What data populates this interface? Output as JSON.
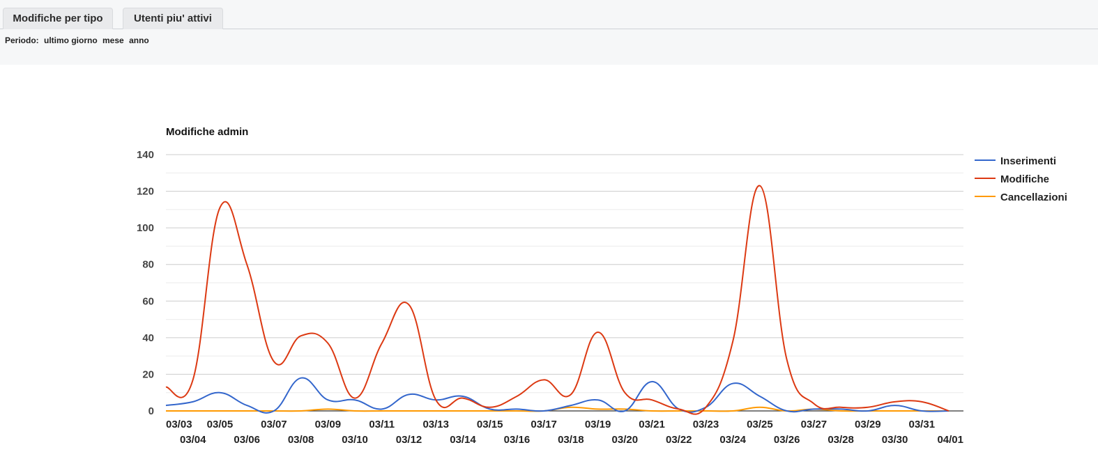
{
  "tabs": [
    {
      "label": "Modifiche per tipo"
    },
    {
      "label": "Utenti piu' attivi"
    }
  ],
  "period": {
    "label": "Periodo:",
    "options": [
      "ultimo giorno",
      "mese",
      "anno"
    ]
  },
  "chart_data": {
    "type": "line",
    "title": "Modifiche admin",
    "xlabel": "",
    "ylabel": "",
    "ylim": [
      0,
      140
    ],
    "yticks": [
      0,
      20,
      40,
      60,
      80,
      100,
      120,
      140
    ],
    "grid": true,
    "legend": "right",
    "categories": [
      "03/03",
      "03/04",
      "03/05",
      "03/06",
      "03/07",
      "03/08",
      "03/09",
      "03/10",
      "03/11",
      "03/12",
      "03/13",
      "03/14",
      "03/15",
      "03/16",
      "03/17",
      "03/18",
      "03/19",
      "03/20",
      "03/21",
      "03/22",
      "03/23",
      "03/24",
      "03/25",
      "03/26",
      "03/27",
      "03/28",
      "03/29",
      "03/30",
      "03/31",
      "04/01"
    ],
    "series": [
      {
        "name": "Inserimenti",
        "color": "#3366cc",
        "values": [
          3,
          5,
          10,
          3,
          0,
          18,
          6,
          6,
          1,
          9,
          6,
          8,
          1,
          1,
          0,
          3,
          6,
          0,
          16,
          1,
          2,
          15,
          8,
          0,
          1,
          1,
          0,
          3,
          0,
          0
        ]
      },
      {
        "name": "Modifiche",
        "color": "#dc3912",
        "values": [
          13,
          17,
          111,
          80,
          27,
          41,
          37,
          7,
          37,
          58,
          6,
          7,
          2,
          8,
          17,
          9,
          43,
          10,
          6,
          1,
          2,
          38,
          123,
          28,
          4,
          2,
          2,
          5,
          5,
          0
        ]
      },
      {
        "name": "Cancellazioni",
        "color": "#ff9900",
        "values": [
          0,
          0,
          0,
          0,
          0,
          0,
          1,
          0,
          0,
          0,
          0,
          0,
          0,
          0,
          0,
          2,
          1,
          1,
          0,
          0,
          0,
          0,
          2,
          0,
          1,
          0,
          0,
          0,
          0,
          0
        ]
      }
    ]
  }
}
